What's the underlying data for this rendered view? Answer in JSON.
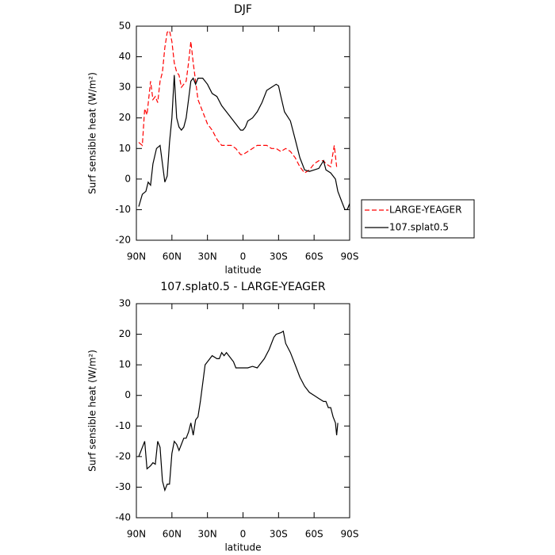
{
  "chart_data": [
    {
      "type": "line",
      "title": "DJF",
      "xlabel": "latitude",
      "ylabel": "Surf sensible heat (W/m²)",
      "xlim": [
        90,
        -90
      ],
      "ylim": [
        -20,
        50
      ],
      "xticks": [
        {
          "value": 90,
          "label": "90N"
        },
        {
          "value": 60,
          "label": "60N"
        },
        {
          "value": 30,
          "label": "30N"
        },
        0,
        {
          "value": -30,
          "label": "30S"
        },
        {
          "value": -60,
          "label": "60S"
        },
        {
          "value": -90,
          "label": "90S"
        }
      ],
      "yticks": [
        -20,
        -10,
        0,
        10,
        20,
        30,
        40,
        50
      ],
      "legend": "right",
      "series": [
        {
          "name": "LARGE-YEAGER",
          "color": "#ff0000",
          "style": "dashed",
          "x": [
            88,
            85,
            83,
            81,
            78,
            76,
            74,
            72,
            70,
            68,
            66,
            64,
            62,
            60,
            58,
            56,
            54,
            52,
            50,
            48,
            46,
            44,
            42,
            40,
            38,
            36,
            34,
            30,
            26,
            22,
            18,
            14,
            10,
            6,
            2,
            0,
            -4,
            -8,
            -12,
            -16,
            -20,
            -24,
            -28,
            -32,
            -36,
            -40,
            -44,
            -48,
            -52,
            -56,
            -60,
            -64,
            -68,
            -70,
            -74,
            -77,
            -79
          ],
          "values": [
            12,
            11,
            23,
            21,
            32,
            26,
            27,
            25,
            32,
            35,
            43,
            48,
            48.5,
            45,
            38,
            35,
            34,
            30,
            31,
            32,
            38,
            45,
            38,
            32,
            26,
            24,
            22,
            18,
            16,
            13,
            11,
            11,
            11,
            10,
            8,
            8,
            9,
            10,
            11,
            11,
            11,
            10,
            10,
            9,
            10,
            9,
            7,
            4,
            2,
            3,
            5,
            6,
            6,
            5,
            4,
            11,
            4
          ]
        },
        {
          "name": "107.splat0.5",
          "color": "#000000",
          "style": "solid",
          "x": [
            88,
            85,
            82,
            80,
            78,
            76,
            73,
            70,
            68,
            66,
            64,
            62,
            60,
            58,
            56,
            54,
            52,
            50,
            48,
            46,
            44,
            42,
            40,
            38,
            36,
            34,
            30,
            26,
            22,
            18,
            14,
            10,
            6,
            2,
            0,
            -2,
            -4,
            -8,
            -12,
            -16,
            -20,
            -24,
            -28,
            -30,
            -32,
            -35,
            -40,
            -44,
            -48,
            -52,
            -56,
            -60,
            -64,
            -68,
            -70,
            -74,
            -78,
            -80,
            -83,
            -86,
            -88,
            -90
          ],
          "values": [
            -9,
            -5,
            -4,
            -1,
            -2,
            5,
            10,
            11,
            5,
            -1,
            1,
            12,
            20,
            34,
            20,
            17,
            16,
            17,
            20,
            26,
            32,
            33,
            31,
            33,
            33,
            33,
            31,
            28,
            27,
            24,
            22,
            20,
            18,
            16,
            16,
            17,
            19,
            20,
            22,
            25,
            29,
            30,
            31,
            30.5,
            27,
            22,
            19,
            13,
            7,
            3,
            2.5,
            3,
            3.5,
            6,
            3,
            2,
            0,
            -4,
            -7,
            -10,
            -10,
            -8
          ]
        }
      ]
    },
    {
      "type": "line",
      "title": "107.splat0.5 - LARGE-YEAGER",
      "xlabel": "latitude",
      "ylabel": "Surf sensible heat (W/m²)",
      "xlim": [
        90,
        -90
      ],
      "ylim": [
        -40,
        30
      ],
      "xticks": [
        {
          "value": 90,
          "label": "90N"
        },
        {
          "value": 60,
          "label": "60N"
        },
        {
          "value": 30,
          "label": "30N"
        },
        0,
        {
          "value": -30,
          "label": "30S"
        },
        {
          "value": -60,
          "label": "60S"
        },
        {
          "value": -90,
          "label": "90S"
        }
      ],
      "yticks": [
        -40,
        -30,
        -20,
        -10,
        0,
        10,
        20,
        30
      ],
      "series": [
        {
          "color": "#000000",
          "style": "solid",
          "x": [
            88,
            85,
            83,
            81,
            78,
            76,
            74,
            72,
            70,
            68,
            66,
            64,
            62,
            60,
            58,
            56,
            54,
            52,
            50,
            48,
            46,
            44,
            42,
            40,
            38,
            36,
            34,
            32,
            30,
            26,
            22,
            20,
            18,
            16,
            14,
            12,
            8,
            6,
            2,
            0,
            -4,
            -8,
            -12,
            -14,
            -18,
            -22,
            -26,
            -28,
            -32,
            -34,
            -36,
            -40,
            -44,
            -48,
            -52,
            -56,
            -60,
            -64,
            -68,
            -70,
            -72,
            -74,
            -76,
            -78,
            -79,
            -80
          ],
          "values": [
            -20,
            -17,
            -15,
            -24,
            -23,
            -22,
            -22.5,
            -15,
            -17,
            -28,
            -31,
            -29,
            -29,
            -19,
            -15,
            -16,
            -18,
            -16,
            -14,
            -14,
            -12,
            -9,
            -13,
            -8,
            -7,
            -2,
            4,
            10,
            11,
            13,
            12,
            12,
            14,
            13,
            14,
            13,
            11,
            9,
            9,
            9,
            9,
            9.5,
            9,
            10,
            12,
            15,
            19,
            20,
            20.5,
            21,
            17,
            14,
            10,
            6,
            3,
            1,
            0,
            -1,
            -2,
            -2,
            -4,
            -4,
            -7,
            -9,
            -13,
            -9
          ]
        }
      ]
    }
  ]
}
